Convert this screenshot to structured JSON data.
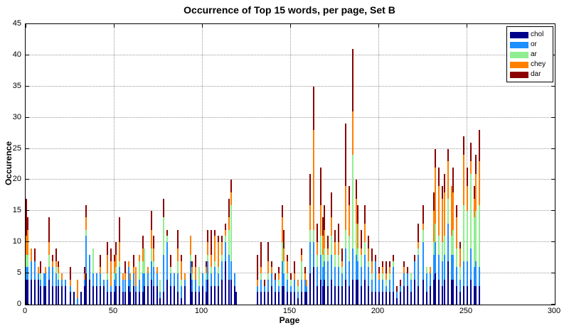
{
  "title": "Occurrence of Top 15 words, per page, Set B",
  "chart_data": {
    "type": "bar",
    "stacked": true,
    "title": "Occurrence of Top 15 words, per page, Set B",
    "xlabel": "Page",
    "ylabel": "Occurence",
    "xlim": [
      0,
      300
    ],
    "ylim": [
      0,
      45
    ],
    "xticks": [
      0,
      50,
      100,
      150,
      200,
      250,
      300
    ],
    "yticks": [
      0,
      5,
      10,
      15,
      20,
      25,
      30,
      35,
      40,
      45
    ],
    "grid": "dotted",
    "legend_position": "top-right",
    "series": [
      {
        "name": "chol",
        "color": "#00008B"
      },
      {
        "name": "or",
        "color": "#1E90FF"
      },
      {
        "name": "ar",
        "color": "#90EE90"
      },
      {
        "name": "chey",
        "color": "#FF8000"
      },
      {
        "name": "dar",
        "color": "#8B0000"
      }
    ],
    "bars_format": [
      "page",
      "chol",
      "or",
      "ar",
      "chey",
      "dar"
    ],
    "bars": [
      [
        0,
        4,
        2,
        2,
        3,
        6
      ],
      [
        1,
        4,
        2,
        2,
        4,
        2
      ],
      [
        3,
        4,
        3,
        0,
        2,
        0
      ],
      [
        5,
        4,
        3,
        0,
        0,
        2
      ],
      [
        7,
        4,
        1,
        0,
        1,
        0
      ],
      [
        8,
        3,
        1,
        1,
        0,
        2
      ],
      [
        10,
        3,
        2,
        0,
        0,
        0
      ],
      [
        11,
        3,
        2,
        0,
        1,
        0
      ],
      [
        13,
        4,
        2,
        2,
        2,
        4
      ],
      [
        15,
        3,
        3,
        0,
        1,
        1
      ],
      [
        17,
        3,
        2,
        1,
        1,
        2
      ],
      [
        18,
        3,
        1,
        1,
        1,
        1
      ],
      [
        20,
        3,
        1,
        0,
        1,
        0
      ],
      [
        22,
        3,
        1,
        0,
        0,
        0
      ],
      [
        25,
        2,
        1,
        0,
        1,
        2
      ],
      [
        27,
        2,
        0,
        0,
        0,
        0
      ],
      [
        29,
        0,
        1,
        0,
        3,
        0
      ],
      [
        31,
        2,
        0,
        0,
        0,
        0
      ],
      [
        33,
        3,
        1,
        0,
        1,
        1
      ],
      [
        34,
        5,
        6,
        1,
        2,
        2
      ],
      [
        36,
        4,
        4,
        0,
        0,
        0
      ],
      [
        38,
        3,
        2,
        4,
        0,
        0
      ],
      [
        40,
        3,
        2,
        0,
        0,
        0
      ],
      [
        42,
        3,
        2,
        0,
        1,
        2
      ],
      [
        44,
        3,
        1,
        0,
        0,
        0
      ],
      [
        46,
        2,
        2,
        1,
        3,
        2
      ],
      [
        48,
        2,
        1,
        0,
        4,
        2
      ],
      [
        50,
        2,
        2,
        1,
        2,
        1
      ],
      [
        51,
        3,
        2,
        1,
        2,
        2
      ],
      [
        53,
        3,
        3,
        1,
        3,
        4
      ],
      [
        55,
        2,
        2,
        0,
        1,
        0
      ],
      [
        56,
        2,
        2,
        0,
        1,
        2
      ],
      [
        58,
        3,
        3,
        0,
        1,
        0
      ],
      [
        59,
        2,
        2,
        0,
        1,
        0
      ],
      [
        61,
        3,
        2,
        0,
        1,
        2
      ],
      [
        62,
        2,
        1,
        0,
        3,
        0
      ],
      [
        64,
        2,
        2,
        3,
        1,
        0
      ],
      [
        66,
        2,
        3,
        2,
        2,
        2
      ],
      [
        67,
        3,
        2,
        4,
        0,
        0
      ],
      [
        69,
        3,
        2,
        0,
        1,
        0
      ],
      [
        71,
        4,
        3,
        2,
        3,
        3
      ],
      [
        72,
        3,
        3,
        1,
        2,
        2
      ],
      [
        74,
        3,
        2,
        0,
        1,
        0
      ],
      [
        76,
        1,
        1,
        2,
        0,
        0
      ],
      [
        78,
        2,
        6,
        6,
        0,
        3
      ],
      [
        80,
        4,
        6,
        1,
        0,
        1
      ],
      [
        82,
        3,
        2,
        1,
        0,
        2
      ],
      [
        84,
        3,
        2,
        0,
        0,
        0
      ],
      [
        86,
        2,
        3,
        2,
        2,
        3
      ],
      [
        88,
        1,
        2,
        1,
        3,
        1
      ],
      [
        90,
        3,
        1,
        0,
        1,
        0
      ],
      [
        93,
        5,
        2,
        1,
        3,
        0
      ],
      [
        94,
        2,
        2,
        1,
        1,
        1
      ],
      [
        96,
        2,
        2,
        0,
        2,
        2
      ],
      [
        98,
        2,
        1,
        3,
        0,
        0
      ],
      [
        100,
        3,
        2,
        0,
        0,
        0
      ],
      [
        102,
        2,
        2,
        1,
        1,
        1
      ],
      [
        103,
        4,
        3,
        1,
        2,
        2
      ],
      [
        105,
        3,
        2,
        1,
        2,
        4
      ],
      [
        107,
        3,
        3,
        1,
        4,
        1
      ],
      [
        109,
        3,
        2,
        1,
        4,
        1
      ],
      [
        111,
        4,
        3,
        1,
        2,
        1
      ],
      [
        113,
        7,
        3,
        1,
        1,
        1
      ],
      [
        115,
        4,
        4,
        4,
        2,
        3
      ],
      [
        116,
        4,
        3,
        9,
        2,
        2
      ],
      [
        118,
        3,
        2,
        0,
        0,
        0
      ],
      [
        119,
        2,
        0,
        0,
        0,
        0
      ],
      [
        131,
        2,
        1,
        0,
        1,
        4
      ],
      [
        133,
        2,
        2,
        1,
        1,
        4
      ],
      [
        135,
        2,
        1,
        0,
        0,
        1
      ],
      [
        137,
        2,
        2,
        1,
        2,
        3
      ],
      [
        139,
        3,
        2,
        0,
        1,
        1
      ],
      [
        141,
        2,
        2,
        0,
        0,
        1
      ],
      [
        143,
        2,
        1,
        1,
        1,
        1
      ],
      [
        145,
        3,
        4,
        3,
        4,
        2
      ],
      [
        146,
        3,
        2,
        2,
        2,
        3
      ],
      [
        148,
        2,
        2,
        1,
        2,
        1
      ],
      [
        150,
        2,
        1,
        1,
        0,
        1
      ],
      [
        152,
        2,
        2,
        0,
        1,
        2
      ],
      [
        154,
        1,
        1,
        1,
        1,
        0
      ],
      [
        156,
        2,
        2,
        3,
        1,
        1
      ],
      [
        158,
        2,
        2,
        0,
        1,
        1
      ],
      [
        159,
        2,
        1,
        0,
        1,
        0
      ],
      [
        161,
        5,
        5,
        2,
        4,
        5
      ],
      [
        163,
        6,
        4,
        2,
        16,
        7
      ],
      [
        165,
        3,
        3,
        2,
        2,
        3
      ],
      [
        167,
        4,
        4,
        3,
        5,
        6
      ],
      [
        168,
        3,
        3,
        2,
        3,
        3
      ],
      [
        169,
        4,
        3,
        2,
        3,
        4
      ],
      [
        171,
        3,
        4,
        1,
        1,
        2
      ],
      [
        173,
        4,
        4,
        3,
        3,
        4
      ],
      [
        175,
        3,
        3,
        2,
        2,
        2
      ],
      [
        177,
        3,
        3,
        2,
        2,
        3
      ],
      [
        179,
        3,
        2,
        1,
        1,
        2
      ],
      [
        181,
        4,
        5,
        3,
        7,
        10
      ],
      [
        183,
        3,
        4,
        4,
        5,
        3
      ],
      [
        185,
        4,
        5,
        15,
        7,
        10
      ],
      [
        187,
        4,
        4,
        5,
        4,
        3
      ],
      [
        188,
        4,
        3,
        2,
        4,
        3
      ],
      [
        190,
        3,
        3,
        2,
        1,
        3
      ],
      [
        192,
        4,
        4,
        2,
        3,
        3
      ],
      [
        194,
        3,
        3,
        1,
        2,
        2
      ],
      [
        196,
        2,
        2,
        1,
        2,
        2
      ],
      [
        198,
        2,
        5,
        0,
        0,
        1
      ],
      [
        200,
        2,
        2,
        0,
        1,
        1
      ],
      [
        202,
        2,
        2,
        1,
        1,
        1
      ],
      [
        204,
        2,
        1,
        1,
        1,
        2
      ],
      [
        206,
        2,
        2,
        1,
        1,
        1
      ],
      [
        208,
        2,
        4,
        1,
        0,
        1
      ],
      [
        210,
        1,
        1,
        0,
        0,
        1
      ],
      [
        212,
        2,
        1,
        0,
        0,
        1
      ],
      [
        214,
        3,
        2,
        0,
        1,
        1
      ],
      [
        216,
        3,
        2,
        0,
        0,
        1
      ],
      [
        218,
        2,
        2,
        1,
        0,
        0
      ],
      [
        220,
        4,
        3,
        0,
        0,
        1
      ],
      [
        222,
        3,
        5,
        1,
        1,
        3
      ],
      [
        225,
        4,
        6,
        2,
        1,
        3
      ],
      [
        227,
        2,
        3,
        1,
        0,
        0
      ],
      [
        229,
        3,
        2,
        0,
        1,
        0
      ],
      [
        231,
        4,
        4,
        2,
        5,
        3
      ],
      [
        232,
        5,
        5,
        3,
        9,
        3
      ],
      [
        234,
        4,
        4,
        3,
        8,
        3
      ],
      [
        236,
        3,
        4,
        3,
        7,
        2
      ],
      [
        237,
        4,
        4,
        3,
        7,
        3
      ],
      [
        239,
        7,
        6,
        4,
        6,
        2
      ],
      [
        241,
        4,
        4,
        3,
        8,
        0
      ],
      [
        242,
        4,
        4,
        4,
        6,
        4
      ],
      [
        244,
        3,
        3,
        3,
        5,
        2
      ],
      [
        246,
        2,
        2,
        2,
        3,
        1
      ],
      [
        248,
        3,
        4,
        9,
        8,
        3
      ],
      [
        250,
        3,
        4,
        8,
        4,
        3
      ],
      [
        252,
        4,
        5,
        12,
        2,
        3
      ],
      [
        254,
        3,
        3,
        8,
        3,
        2
      ],
      [
        255,
        3,
        4,
        8,
        6,
        3
      ],
      [
        257,
        3,
        3,
        10,
        7,
        5
      ]
    ]
  }
}
